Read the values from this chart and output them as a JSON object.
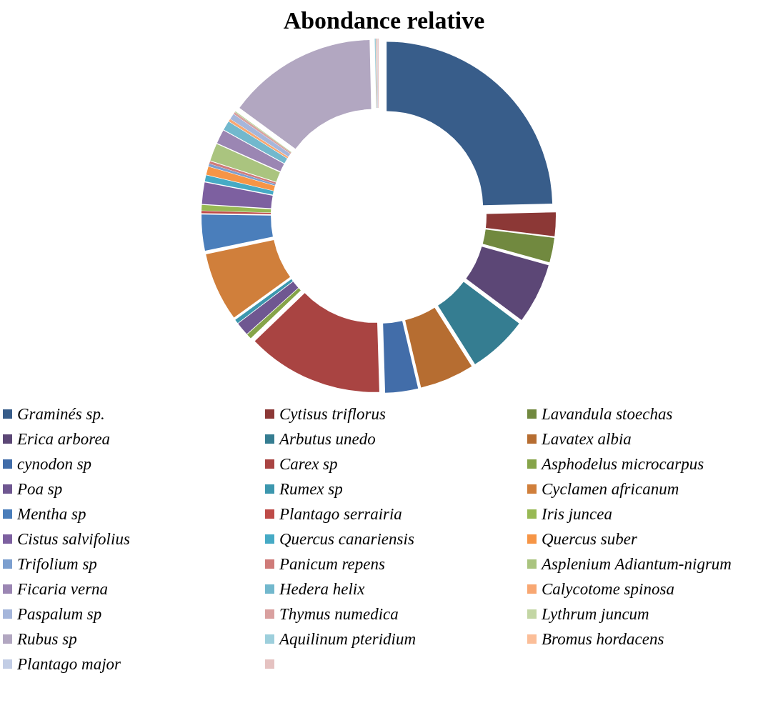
{
  "chart_data": {
    "type": "donut",
    "title": "Abondance relative",
    "categories": [
      "Graminés sp.",
      "Cytisus triflorus",
      "Lavandula stoechas",
      "Erica arborea",
      "Arbutus unedo",
      "Lavatex albia",
      "cynodon sp",
      "Carex sp",
      "Asphodelus microcarpus",
      "Poa sp",
      "Rumex sp",
      "Cyclamen africanum",
      "Mentha sp",
      "Plantago serrairia",
      "Iris juncea",
      "Cistus salvifolius",
      "Quercus canariensis",
      "Quercus suber",
      "Trifolium sp",
      "Panicum repens",
      "Asplenium Adiantum-nigrum",
      "Ficaria verna",
      "Hedera helix",
      "Calycotome spinosa",
      "Paspalum sp",
      "Thymus numedica",
      "Lythrum juncum",
      "Rubus sp",
      "Aquilinum pteridium",
      "Bromus hordacens",
      "Plantago major",
      null
    ],
    "values": [
      24.62,
      2.3,
      2.4,
      5.9,
      5.8,
      5.3,
      3.2,
      13.3,
      0.5,
      1.3,
      0.4,
      6.7,
      3.5,
      0.22,
      0.55,
      2.1,
      0.6,
      0.8,
      0.25,
      0.25,
      1.7,
      1.35,
      0.9,
      0.25,
      0.55,
      0.2,
      0.1,
      14.6,
      0.1,
      0.08,
      0.08,
      0.1
    ],
    "colors": [
      "#385d8a",
      "#8c3836",
      "#71893f",
      "#5c4776",
      "#357d91",
      "#b66d31",
      "#426da9",
      "#a94442",
      "#86a449",
      "#6f5791",
      "#3c97ae",
      "#d07f3b",
      "#4a7ebb",
      "#be4b48",
      "#98b954",
      "#7d60a0",
      "#46aac5",
      "#f69546",
      "#7c9fcf",
      "#cf7b79",
      "#aac47f",
      "#9b86b3",
      "#72b8cd",
      "#f8a772",
      "#a5b6db",
      "#d9a09f",
      "#c3d6a4",
      "#b2a7c1",
      "#9dcfdc",
      "#fbbe98",
      "#c2cde5",
      "#e5c2c1"
    ],
    "legend": "bottom"
  }
}
